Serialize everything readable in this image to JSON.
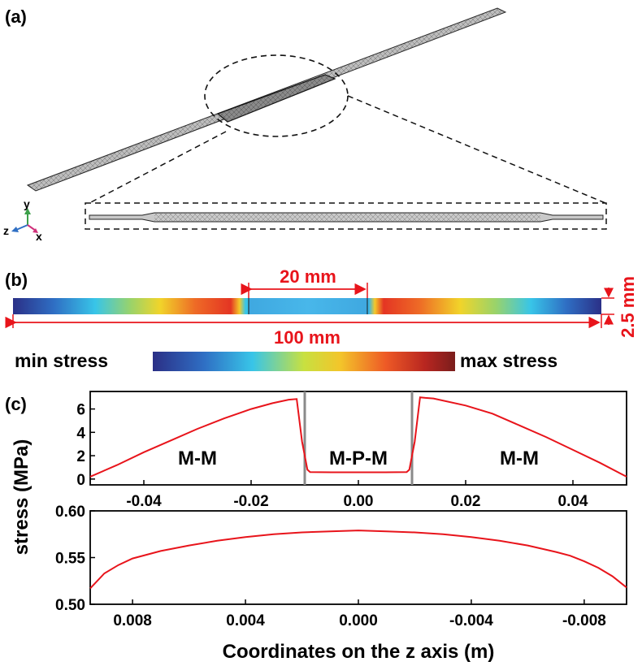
{
  "panels": {
    "a": "(a)",
    "b": "(b)",
    "c": "(c)"
  },
  "axes_triad": {
    "y": "y",
    "z": "z",
    "x": "x"
  },
  "dimensions": {
    "center_length": "20 mm",
    "total_length": "100 mm",
    "thickness": "2.5 mm"
  },
  "colorbar": {
    "min_label": "min stress",
    "max_label": "max stress"
  },
  "colors": {
    "red": "#e8141b",
    "scale": [
      "#2b2f86",
      "#2f6fc4",
      "#38c5e8",
      "#c8e040",
      "#f3c52a",
      "#ee5a26",
      "#b82620",
      "#7a1d1c"
    ]
  },
  "chart_data": [
    {
      "type": "line",
      "title": "",
      "xlabel": "",
      "ylabel": "stress (MPa)",
      "xlim": [
        -0.05,
        0.05
      ],
      "ylim": [
        -0.5,
        7.5
      ],
      "xticks": [
        -0.04,
        -0.02,
        0.0,
        0.02,
        0.04
      ],
      "xtick_labels": [
        "-0.04",
        "-0.02",
        "0.00",
        "0.02",
        "0.04"
      ],
      "yticks": [
        0,
        2,
        4,
        6
      ],
      "ytick_labels": [
        "0",
        "2",
        "4",
        "6"
      ],
      "region_labels": [
        "M-M",
        "M-P-M",
        "M-M"
      ],
      "boundaries": [
        -0.01,
        0.01
      ],
      "series": [
        {
          "name": "stress",
          "x": [
            -0.05,
            -0.045,
            -0.04,
            -0.035,
            -0.03,
            -0.025,
            -0.02,
            -0.016,
            -0.013,
            -0.0115,
            -0.0105,
            -0.0095,
            -0.009,
            -0.005,
            0.0,
            0.005,
            0.009,
            0.0095,
            0.0105,
            0.0115,
            0.0125,
            0.014,
            0.02,
            0.025,
            0.03,
            0.035,
            0.04,
            0.045,
            0.05
          ],
          "y": [
            0.2,
            1.2,
            2.3,
            3.3,
            4.3,
            5.2,
            6.0,
            6.5,
            6.8,
            6.85,
            3.2,
            0.8,
            0.6,
            0.58,
            0.58,
            0.58,
            0.6,
            0.8,
            3.2,
            7.0,
            6.95,
            6.9,
            6.3,
            5.6,
            4.6,
            3.6,
            2.5,
            1.4,
            0.2
          ]
        }
      ]
    },
    {
      "type": "line",
      "title": "",
      "xlabel": "Coordinates on the z axis (m)",
      "ylabel": "stress (MPa)",
      "xlim": [
        0.0095,
        -0.0095
      ],
      "ylim": [
        0.5,
        0.6
      ],
      "xticks": [
        0.008,
        0.004,
        0.0,
        -0.004,
        -0.008
      ],
      "xtick_labels": [
        "0.008",
        "0.004",
        "0.000",
        "-0.004",
        "-0.008"
      ],
      "yticks": [
        0.5,
        0.55,
        0.6
      ],
      "ytick_labels": [
        "0.50",
        "0.55",
        "0.60"
      ],
      "series": [
        {
          "name": "stress",
          "x": [
            0.0095,
            0.009,
            0.0085,
            0.008,
            0.007,
            0.006,
            0.005,
            0.004,
            0.003,
            0.002,
            0.001,
            0.0,
            -0.001,
            -0.002,
            -0.003,
            -0.004,
            -0.005,
            -0.006,
            -0.007,
            -0.0075,
            -0.008,
            -0.0085,
            -0.009,
            -0.0095
          ],
          "y": [
            0.517,
            0.533,
            0.542,
            0.549,
            0.557,
            0.563,
            0.568,
            0.572,
            0.575,
            0.577,
            0.578,
            0.579,
            0.578,
            0.577,
            0.575,
            0.572,
            0.568,
            0.563,
            0.556,
            0.552,
            0.546,
            0.539,
            0.53,
            0.518
          ]
        }
      ]
    }
  ]
}
